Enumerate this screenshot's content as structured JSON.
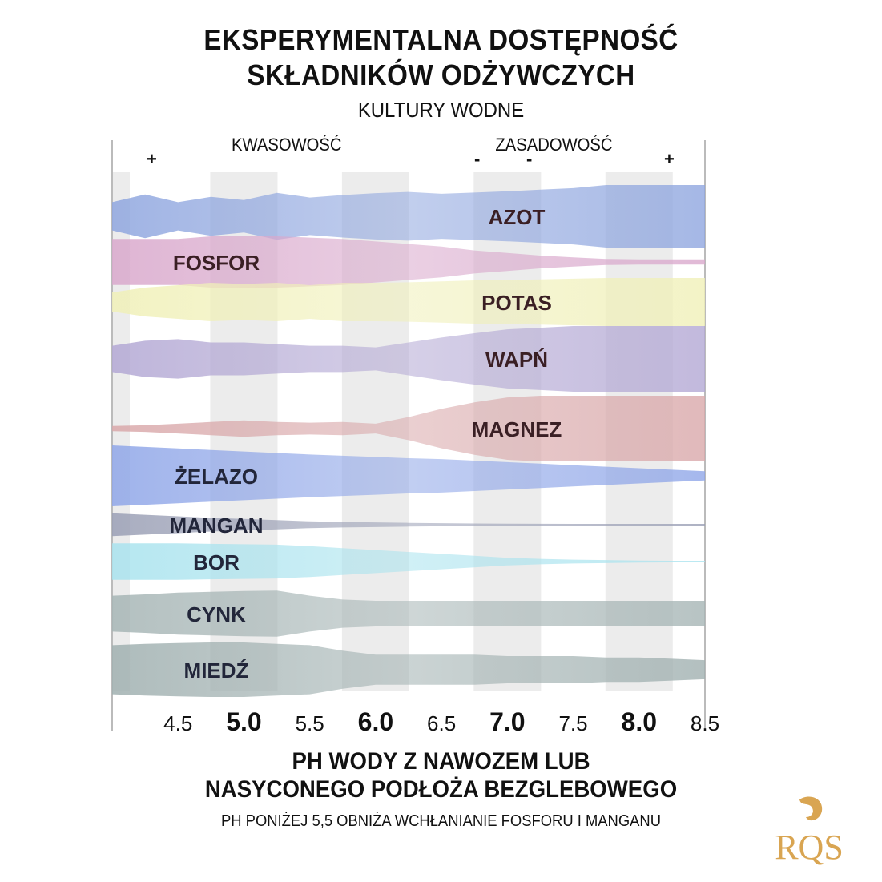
{
  "header": {
    "title_line1": "EKSPERYMENTALNA DOSTĘPNOŚĆ",
    "title_line2": "SKŁADNIKÓW ODŻYWCZYCH",
    "subtitle": "KULTURY WODNE",
    "acidity_label": "KWASOWOŚĆ",
    "alkalinity_label": "ZASADOWOŚĆ",
    "signs": [
      "+",
      "-",
      "-",
      "+"
    ]
  },
  "footer": {
    "xlabel_line1": "PH WODY Z NAWOZEM LUB",
    "xlabel_line2": "NASYCONEGO PODŁOŻA BEZGLEBOWEGO",
    "note": "PH PONIŻEJ 5,5 OBNIŻA WCHŁANIANIE FOSFORU I MANGANU"
  },
  "logo_text": "RQS",
  "chart_data": {
    "type": "area",
    "xlim": [
      4.0,
      8.5
    ],
    "x_ticks": [
      {
        "label": "4.5",
        "value": 4.5,
        "major": false
      },
      {
        "label": "5.0",
        "value": 5.0,
        "major": true
      },
      {
        "label": "5.5",
        "value": 5.5,
        "major": false
      },
      {
        "label": "6.0",
        "value": 6.0,
        "major": true
      },
      {
        "label": "6.5",
        "value": 6.5,
        "major": false
      },
      {
        "label": "7.0",
        "value": 7.0,
        "major": true
      },
      {
        "label": "7.5",
        "value": 7.5,
        "major": false
      },
      {
        "label": "8.0",
        "value": 8.0,
        "major": true
      },
      {
        "label": "8.5",
        "value": 8.5,
        "major": false
      }
    ],
    "x": [
      4.0,
      4.25,
      4.5,
      4.75,
      5.0,
      5.25,
      5.5,
      5.75,
      6.0,
      6.25,
      6.5,
      6.75,
      7.0,
      7.25,
      7.5,
      7.75,
      8.0,
      8.25,
      8.5
    ],
    "series": [
      {
        "name": "AZOT",
        "color": "#8fa6df",
        "values": [
          0.45,
          0.7,
          0.45,
          0.62,
          0.52,
          0.75,
          0.6,
          0.68,
          0.74,
          0.78,
          0.72,
          0.76,
          0.8,
          0.85,
          0.9,
          1.0,
          1.0,
          1.0,
          1.0
        ]
      },
      {
        "name": "FOSFOR",
        "color": "#d9a8cc",
        "values": [
          0.9,
          0.9,
          0.9,
          1.0,
          1.0,
          1.0,
          0.95,
          0.9,
          0.8,
          0.7,
          0.6,
          0.45,
          0.35,
          0.25,
          0.18,
          0.12,
          0.1,
          0.1,
          0.1
        ]
      },
      {
        "name": "POTAS",
        "color": "#f0f0b8",
        "values": [
          0.4,
          0.6,
          0.7,
          0.8,
          0.75,
          0.8,
          0.7,
          0.8,
          0.8,
          0.82,
          0.86,
          0.9,
          0.92,
          0.94,
          0.97,
          1.0,
          1.0,
          1.0,
          1.0
        ]
      },
      {
        "name": "WAPŃ",
        "color": "#b3a8d4",
        "values": [
          0.4,
          0.55,
          0.6,
          0.5,
          0.5,
          0.45,
          0.4,
          0.4,
          0.35,
          0.5,
          0.65,
          0.78,
          0.9,
          0.95,
          1.0,
          1.0,
          1.0,
          1.0,
          1.0
        ]
      },
      {
        "name": "MAGNEZ",
        "color": "#d9a8aa",
        "values": [
          0.08,
          0.1,
          0.15,
          0.2,
          0.25,
          0.2,
          0.18,
          0.2,
          0.15,
          0.35,
          0.6,
          0.8,
          0.95,
          1.0,
          1.0,
          1.0,
          1.0,
          1.0,
          1.0
        ]
      },
      {
        "name": "ŻELAZO",
        "color": "#8fa6e8",
        "values": [
          1.0,
          0.95,
          0.9,
          0.85,
          0.8,
          0.75,
          0.7,
          0.66,
          0.62,
          0.58,
          0.55,
          0.5,
          0.45,
          0.4,
          0.35,
          0.3,
          0.25,
          0.2,
          0.15
        ]
      },
      {
        "name": "MANGAN",
        "color": "#9a9fb5",
        "values": [
          0.75,
          0.65,
          0.55,
          0.45,
          0.38,
          0.3,
          0.22,
          0.18,
          0.15,
          0.12,
          0.1,
          0.08,
          0.07,
          0.06,
          0.05,
          0.04,
          0.03,
          0.02,
          0.02
        ]
      },
      {
        "name": "BOR",
        "color": "#a9e3ee",
        "values": [
          0.95,
          0.95,
          0.95,
          0.92,
          0.9,
          0.88,
          0.8,
          0.7,
          0.6,
          0.5,
          0.4,
          0.3,
          0.2,
          0.14,
          0.1,
          0.08,
          0.05,
          0.03,
          0.02
        ]
      },
      {
        "name": "CYNK",
        "color": "#a6b5b5",
        "values": [
          0.7,
          0.75,
          0.82,
          0.85,
          0.88,
          0.9,
          0.7,
          0.55,
          0.5,
          0.5,
          0.5,
          0.5,
          0.5,
          0.5,
          0.5,
          0.5,
          0.5,
          0.5,
          0.5
        ]
      },
      {
        "name": "MIEDŹ",
        "color": "#a0b0b0",
        "values": [
          0.9,
          0.95,
          0.98,
          1.0,
          1.0,
          0.95,
          0.9,
          0.7,
          0.55,
          0.55,
          0.55,
          0.55,
          0.5,
          0.5,
          0.5,
          0.45,
          0.45,
          0.4,
          0.35
        ]
      }
    ]
  }
}
